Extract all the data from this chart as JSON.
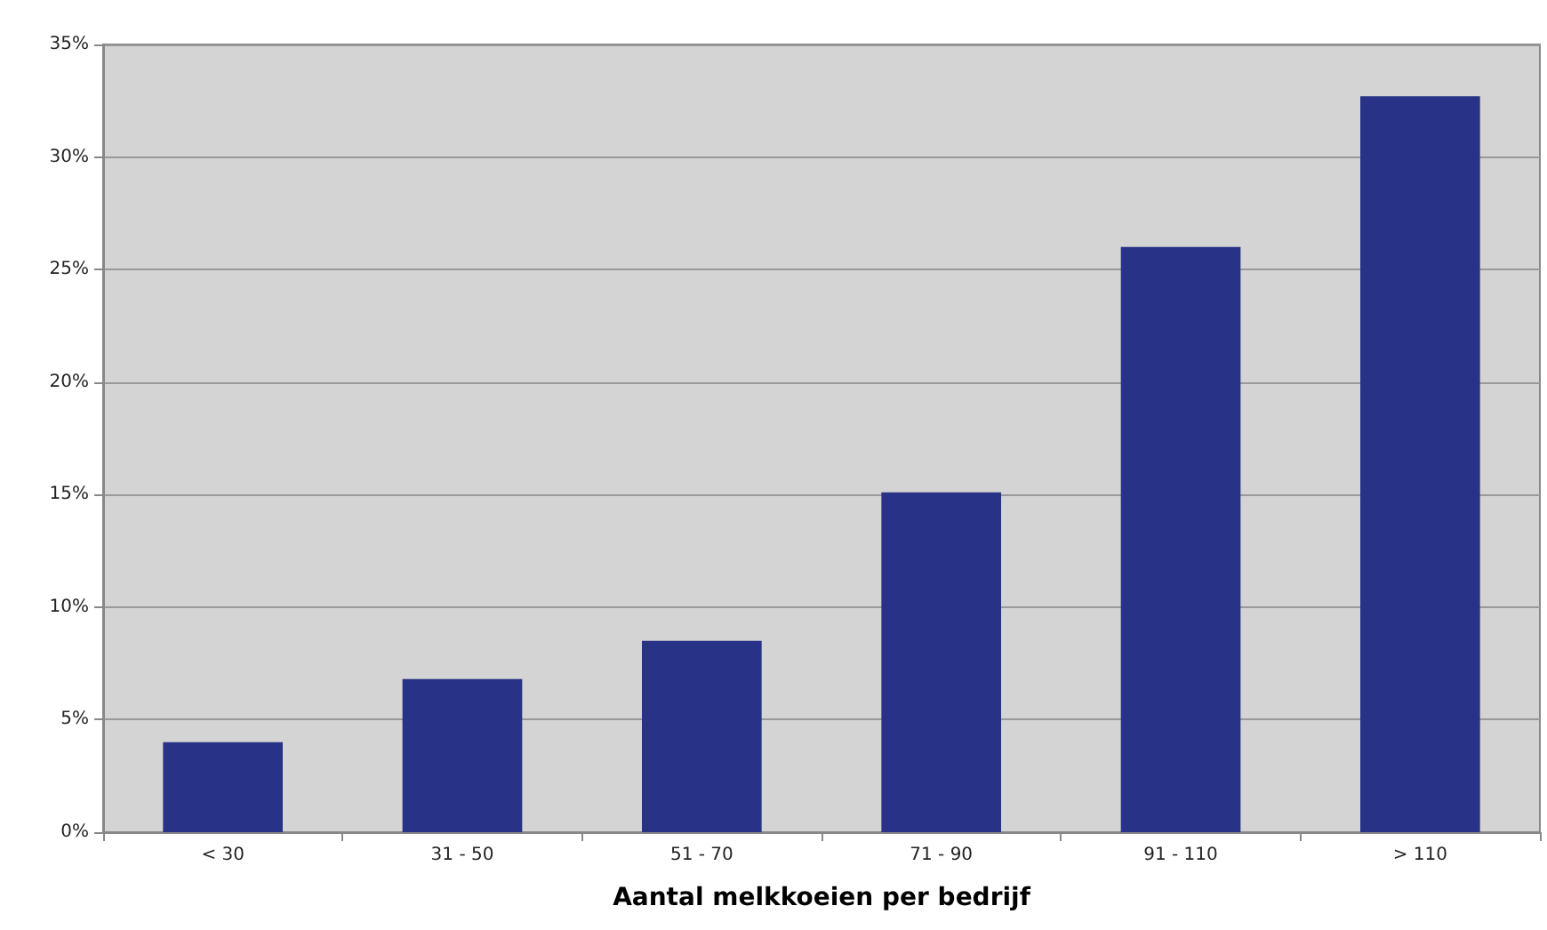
{
  "chart_data": {
    "type": "bar",
    "xlabel": "Aantal melkkoeien per bedrijf",
    "categories": [
      "< 30",
      "31 - 50",
      "51 - 70",
      "71 - 90",
      "91 - 110",
      "> 110"
    ],
    "values": [
      4.0,
      6.8,
      8.5,
      15.1,
      26.0,
      32.7
    ],
    "color": "#283387",
    "ylim": [
      0,
      35
    ],
    "yticks": [
      {
        "value": 0,
        "label": "0%"
      },
      {
        "value": 5,
        "label": "5%"
      },
      {
        "value": 10,
        "label": "10%"
      },
      {
        "value": 15,
        "label": "15%"
      },
      {
        "value": 20,
        "label": "20%"
      },
      {
        "value": 25,
        "label": "25%"
      },
      {
        "value": 30,
        "label": "30%"
      },
      {
        "value": 35,
        "label": "35%"
      }
    ],
    "grid": "y"
  }
}
